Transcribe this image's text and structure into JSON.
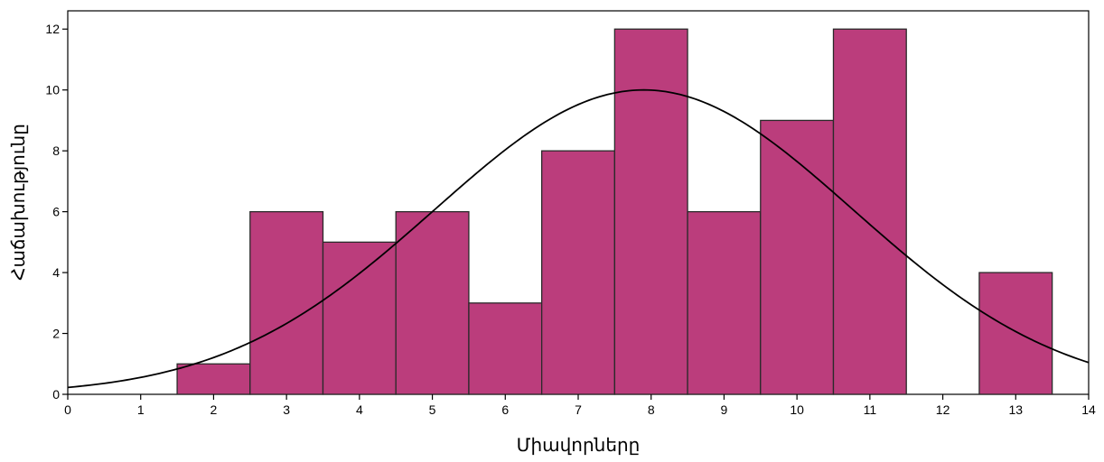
{
  "chart_data": {
    "type": "bar",
    "subtype": "histogram",
    "xlabel": "Միավորները",
    "ylabel": "Հաճախությունը",
    "xlim": [
      0,
      14
    ],
    "ylim": [
      0,
      12.6
    ],
    "x_ticks": [
      0,
      1,
      2,
      3,
      4,
      5,
      6,
      7,
      8,
      9,
      10,
      11,
      12,
      13,
      14
    ],
    "y_ticks": [
      0,
      2,
      4,
      6,
      8,
      10,
      12
    ],
    "bins": [
      {
        "x0": 1.5,
        "x1": 2.5,
        "value": 1
      },
      {
        "x0": 2.5,
        "x1": 3.5,
        "value": 6
      },
      {
        "x0": 3.5,
        "x1": 4.5,
        "value": 5
      },
      {
        "x0": 4.5,
        "x1": 5.5,
        "value": 6
      },
      {
        "x0": 5.5,
        "x1": 6.5,
        "value": 3
      },
      {
        "x0": 6.5,
        "x1": 7.5,
        "value": 8
      },
      {
        "x0": 7.5,
        "x1": 8.5,
        "value": 12
      },
      {
        "x0": 8.5,
        "x1": 9.5,
        "value": 6
      },
      {
        "x0": 9.5,
        "x1": 10.5,
        "value": 9
      },
      {
        "x0": 10.5,
        "x1": 11.5,
        "value": 12
      },
      {
        "x0": 11.5,
        "x1": 12.5,
        "value": 0
      },
      {
        "x0": 12.5,
        "x1": 13.5,
        "value": 4
      }
    ],
    "normal_curve": {
      "mean": 7.9,
      "std_dev": 2.87,
      "peak": 10.0
    },
    "grid": false,
    "colors": {
      "bar_fill": "#bb3d7c",
      "bar_stroke": "#2a2a2a",
      "curve": "#000000",
      "axis": "#000000"
    }
  }
}
